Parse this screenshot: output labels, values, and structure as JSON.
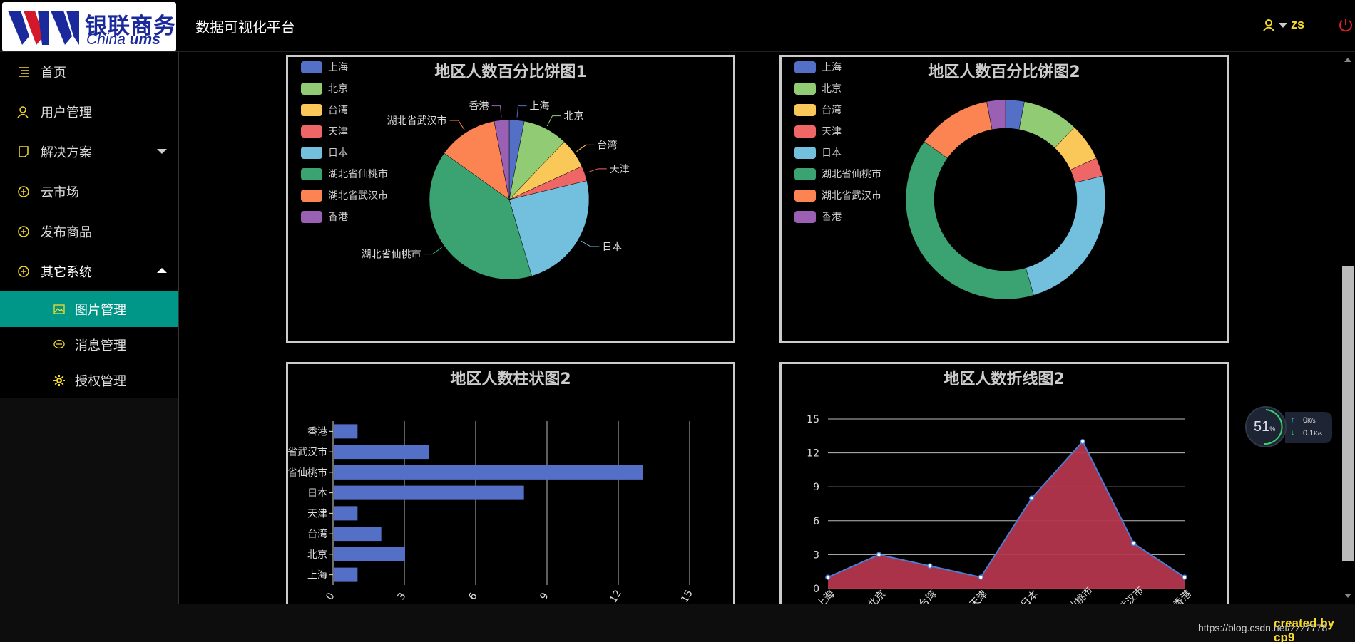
{
  "header": {
    "logo_cn": "银联商务",
    "logo_en_a": "China",
    "logo_en_b": "ums",
    "app_title": "数据可视化平台",
    "user_name": "zs"
  },
  "sidebar": {
    "items": [
      {
        "label": "首页",
        "icon": "list-icon"
      },
      {
        "label": "用户管理",
        "icon": "user-icon"
      },
      {
        "label": "解决方案",
        "icon": "note-icon"
      },
      {
        "label": "云市场",
        "icon": "plus-circle-icon"
      },
      {
        "label": "发布商品",
        "icon": "plus-circle-icon"
      },
      {
        "label": "其它系统",
        "icon": "plus-circle-icon"
      }
    ],
    "sub_items": [
      {
        "label": "图片管理",
        "icon": "image-icon"
      },
      {
        "label": "消息管理",
        "icon": "message-icon"
      },
      {
        "label": "授权管理",
        "icon": "gear-icon"
      }
    ]
  },
  "footer": {
    "created": "created by cp9",
    "blog": "https://blog.csdn.net/zzz7778"
  },
  "net_widget": {
    "percent": "51",
    "percent_unit": "%",
    "up_rate": "0",
    "down_rate": "0.1",
    "rate_unit": "K/s"
  },
  "colors": {
    "accent": "#009688",
    "brand": "#1a2a9c",
    "header_text": "#f7dc2b",
    "power": "#e02020",
    "series": [
      "#5470c6",
      "#91cc75",
      "#fac858",
      "#ee6666",
      "#73c0de",
      "#3ba272",
      "#fc8452",
      "#9a60b4"
    ],
    "area_fill": "#b3364d",
    "line": "#4a7dd4"
  },
  "chart_data": [
    {
      "type": "pie",
      "title": "地区人数百分比饼图1",
      "categories": [
        "上海",
        "北京",
        "台湾",
        "天津",
        "日本",
        "湖北省仙桃市",
        "湖北省武汉市",
        "香港"
      ],
      "values": [
        1,
        3,
        2,
        1,
        8,
        13,
        4,
        1
      ],
      "legend": "top-left",
      "legend_labels": [
        "上海",
        "北京",
        "台湾",
        "天津",
        "日本",
        "湖北省仙桃市",
        "湖北省武汉市",
        "香港"
      ]
    },
    {
      "type": "pie",
      "variant": "donut",
      "title": "地区人数百分比饼图2",
      "categories": [
        "上海",
        "北京",
        "台湾",
        "天津",
        "日本",
        "湖北省仙桃市",
        "湖北省武汉市",
        "香港"
      ],
      "values": [
        1,
        3,
        2,
        1,
        8,
        13,
        4,
        1
      ],
      "legend": "top-left",
      "legend_labels": [
        "上海",
        "北京",
        "台湾",
        "天津",
        "日本",
        "湖北省仙桃市",
        "湖北省武汉市",
        "香港"
      ]
    },
    {
      "type": "bar",
      "orientation": "horizontal",
      "title": "地区人数柱状图2",
      "categories": [
        "上海",
        "北京",
        "台湾",
        "天津",
        "日本",
        "湖北省仙桃市",
        "湖北省武汉市",
        "香港"
      ],
      "tick_labels": [
        "上海",
        "北京",
        "台湾",
        "天津",
        "日本",
        "省仙桃市",
        "省武汉市",
        "香港"
      ],
      "values": [
        1,
        3,
        2,
        1,
        8,
        13,
        4,
        1
      ],
      "xlim": [
        0,
        15
      ],
      "xticks": [
        "0",
        "3",
        "6",
        "9",
        "12",
        "15"
      ]
    },
    {
      "type": "area",
      "title": "地区人数折线图2",
      "categories": [
        "上海",
        "北京",
        "台湾",
        "天津",
        "日本",
        "湖北省仙桃市",
        "湖北省武汉市",
        "香港"
      ],
      "tick_labels": [
        "上海",
        "北京",
        "台湾",
        "天津",
        "日本",
        "仙桃市",
        "武汉市",
        "香港"
      ],
      "values": [
        1,
        3,
        2,
        1,
        8,
        13,
        4,
        1
      ],
      "ylim": [
        0,
        15
      ],
      "yticks": [
        "0",
        "3",
        "6",
        "9",
        "12",
        "15"
      ]
    }
  ]
}
